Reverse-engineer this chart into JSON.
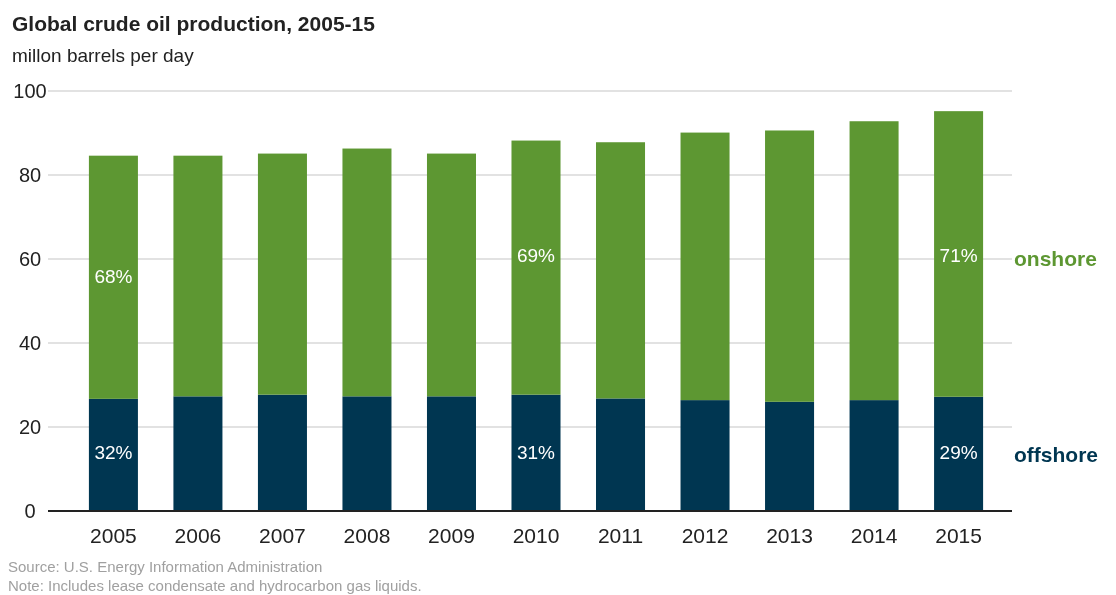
{
  "chart_data": {
    "type": "bar",
    "title": "Global crude oil production, 2005-15",
    "subtitle": "millon barrels per day",
    "categories": [
      "2005",
      "2006",
      "2007",
      "2008",
      "2009",
      "2010",
      "2011",
      "2012",
      "2013",
      "2014",
      "2015"
    ],
    "stacked": true,
    "series": [
      {
        "name": "offshore",
        "color": "#003651",
        "values": [
          26.7,
          27.3,
          27.7,
          27.3,
          27.3,
          27.7,
          26.8,
          26.4,
          26.0,
          26.4,
          27.2
        ]
      },
      {
        "name": "onshore",
        "color": "#5d9732",
        "values": [
          57.9,
          57.3,
          57.4,
          59.0,
          57.8,
          60.5,
          61.0,
          63.7,
          64.6,
          66.4,
          68.0
        ]
      }
    ],
    "ylim": [
      0,
      100
    ],
    "yticks": [
      0,
      20,
      40,
      60,
      80,
      100
    ],
    "grid": "y",
    "legend": "right",
    "annotations": [
      "68%",
      "69%",
      "71%",
      "32%",
      "31%",
      "29%",
      "Source: U.S. Energy Information Administration",
      "Note: Includes lease condensate and hydrocarbon gas liquids."
    ]
  }
}
